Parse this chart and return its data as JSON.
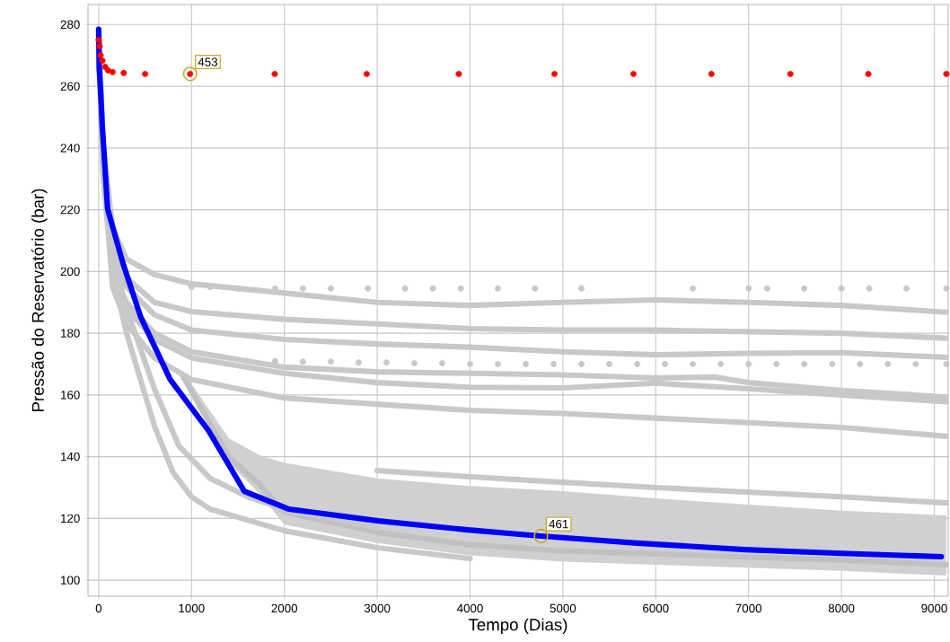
{
  "chart_data": {
    "type": "line",
    "xlabel": "Tempo (Dias)",
    "ylabel": "Pressão do Reservatório (bar)",
    "xlim": [
      -115,
      9150
    ],
    "ylim": [
      94.8,
      286.5
    ],
    "xticks": [
      0,
      1000,
      2000,
      3000,
      4000,
      5000,
      6000,
      7000,
      8000,
      9000
    ],
    "yticks": [
      100,
      120,
      140,
      160,
      180,
      200,
      220,
      240,
      260,
      280
    ],
    "grid": true,
    "series": [
      {
        "color": "#c0c0c0",
        "x": [
          900,
          1400,
          1732,
          2000,
          3000,
          4000,
          5000,
          6000,
          7000,
          8000,
          9130
        ],
        "values": [
          166.5,
          140,
          131,
          122,
          115.5,
          111.5,
          109.5,
          108.5,
          107.5,
          106.5,
          105
        ],
        "upper": [
          168,
          146,
          140.5,
          138,
          133,
          130.5,
          128.8,
          126.5,
          124.5,
          122.5,
          121
        ],
        "lower": [
          165,
          138,
          128,
          118,
          112,
          108,
          106,
          105,
          104,
          103,
          101.5
        ]
      },
      {
        "color": "#c8c8c8",
        "x": [
          0,
          50,
          150,
          300,
          600,
          1000,
          2000,
          3000,
          4000,
          5000,
          6000,
          7000,
          8000,
          9130
        ],
        "values": [
          277,
          240,
          214,
          204,
          199,
          196,
          193,
          190,
          189,
          190,
          190.8,
          190,
          189,
          186.8
        ]
      },
      {
        "color": "#c8c8c8",
        "x": [
          0,
          50,
          150,
          300,
          600,
          1000,
          2000,
          3000,
          4000,
          5000,
          6000,
          7000,
          8000,
          9130
        ],
        "values": [
          276.5,
          238,
          208,
          198,
          190,
          187,
          184.5,
          183,
          181.5,
          181,
          181,
          180.5,
          180,
          178.4
        ]
      },
      {
        "color": "#c8c8c8",
        "x": [
          0,
          50,
          150,
          300,
          600,
          1000,
          2000,
          3000,
          4000,
          5000,
          6000,
          7000,
          8000,
          9130
        ],
        "values": [
          276,
          236,
          205,
          195,
          186,
          181,
          178,
          176.5,
          175.5,
          174,
          173,
          173.5,
          173.7,
          172.2
        ]
      },
      {
        "color": "#c8c8c8",
        "x": [
          0,
          50,
          150,
          300,
          600,
          1000,
          2000,
          3000,
          4000,
          5000,
          6000,
          6640,
          7000,
          8000,
          9130
        ],
        "values": [
          275.5,
          235,
          200,
          190,
          180,
          174,
          169,
          167.5,
          167,
          166.5,
          165.5,
          165.8,
          164,
          161.5,
          159.3
        ]
      },
      {
        "color": "#c8c8c8",
        "x": [
          0,
          50,
          150,
          300,
          600,
          1000,
          2000,
          3000,
          4000,
          5000,
          6000,
          7000,
          8000,
          9130
        ],
        "values": [
          275,
          234,
          198,
          188,
          178,
          172,
          167,
          164,
          162.5,
          162.3,
          163.8,
          162,
          160,
          157.8
        ]
      },
      {
        "color": "#c8c8c8",
        "x": [
          0,
          50,
          150,
          300,
          600,
          1000,
          2000,
          3000,
          4000,
          5000,
          6000,
          7000,
          8000,
          9130
        ],
        "values": [
          274.5,
          232,
          195,
          183,
          172,
          165,
          159,
          157,
          155,
          154,
          152.5,
          151,
          149.5,
          146.6
        ]
      },
      {
        "color": "#c8c8c8",
        "x": [
          3000,
          4000,
          5000,
          6000,
          7000,
          8000,
          9130
        ],
        "values": [
          135.5,
          133.5,
          131.7,
          130,
          128.5,
          127,
          125
        ]
      },
      {
        "color": "#c8c8c8",
        "x": [
          0,
          50,
          150,
          300,
          600,
          800,
          1000,
          1200,
          2000,
          3000,
          4000
        ],
        "values": [
          274,
          231,
          200,
          180,
          150,
          135,
          127,
          123,
          116,
          110.5,
          107
        ]
      },
      {
        "color": "#c8c8c8",
        "x": [
          0,
          50,
          150,
          300,
          600,
          866,
          1200,
          1607,
          2000,
          3000
        ],
        "values": [
          273.5,
          230,
          205,
          188,
          162,
          143.4,
          133,
          127,
          123,
          117
        ]
      },
      {
        "type": "scatter",
        "marker": "circle",
        "color": "#c8c8c8",
        "x": [
          1000,
          1200,
          1500,
          1900,
          2200,
          2500,
          2900,
          3300,
          3600,
          3900,
          4300,
          4700,
          5200,
          6400,
          7000,
          7200,
          7600,
          8000,
          8300,
          8700,
          9130
        ],
        "values": [
          195,
          195,
          194.5,
          194.5,
          194.5,
          194.5,
          194.5,
          194.5,
          194.5,
          194.5,
          194.5,
          194.5,
          194.5,
          194.5,
          194.5,
          194.5,
          194.5,
          194.5,
          194.5,
          194.5,
          194.5
        ]
      },
      {
        "type": "scatter",
        "marker": "circle",
        "color": "#c8c8c8",
        "x": [
          1600,
          1900,
          2200,
          2500,
          2800,
          3100,
          3400,
          3700,
          4000,
          4300,
          4600,
          4900,
          5200,
          5500,
          5800,
          6100,
          6400,
          6700,
          7000,
          7300,
          7600,
          7900,
          8200,
          8500,
          8800,
          9130
        ],
        "values": [
          171,
          171,
          170.8,
          170.8,
          170.5,
          170.5,
          170.3,
          170.3,
          170,
          170,
          170,
          170,
          170,
          170,
          170,
          170,
          170,
          170,
          170,
          170,
          170,
          170,
          170,
          170,
          170,
          170
        ]
      },
      {
        "color": "#0000ff",
        "x": [
          0,
          3,
          6,
          20,
          29,
          38,
          48,
          96,
          260,
          452,
          770,
          1184,
          1569,
          2050,
          3012,
          3975,
          4764,
          5800,
          6959,
          8000,
          9076
        ],
        "values": [
          278.5,
          273.6,
          265.7,
          259,
          253.2,
          247.4,
          243,
          220.3,
          202.8,
          185.3,
          165,
          148.4,
          128.8,
          123,
          119.2,
          116.3,
          114.3,
          112,
          109.9,
          108.7,
          107.6
        ]
      },
      {
        "type": "scatter",
        "marker": "circle",
        "color": "#ff0000",
        "x": [
          0,
          10,
          20,
          40,
          70,
          100,
          150,
          270,
          500,
          985,
          1896,
          2887,
          3879,
          4910,
          5760,
          6600,
          7450,
          8290,
          9130
        ],
        "values": [
          275,
          273,
          270,
          268.3,
          266.3,
          265.2,
          264.6,
          264.3,
          264,
          264,
          264,
          264,
          264,
          264,
          264,
          264,
          264,
          264,
          264
        ]
      }
    ],
    "annotations": [
      {
        "text": "453",
        "x": 985,
        "y": 264
      },
      {
        "text": "461",
        "x": 4764,
        "y": 114.3
      }
    ]
  }
}
